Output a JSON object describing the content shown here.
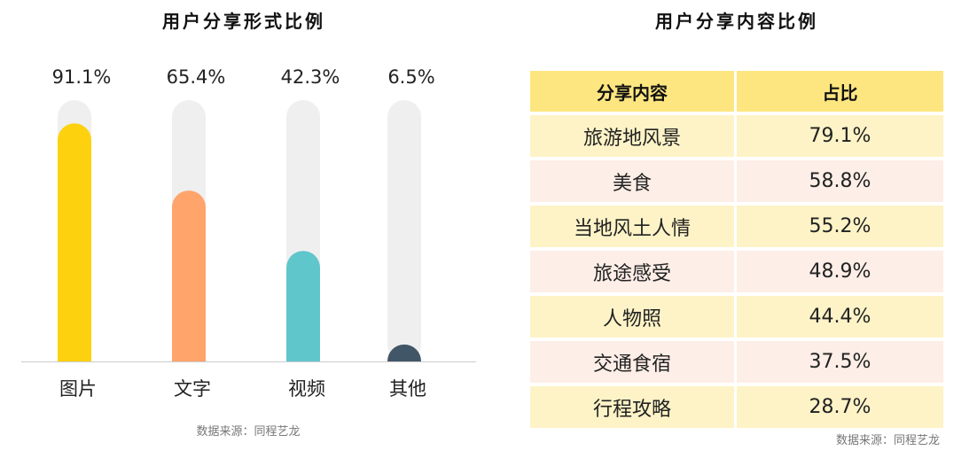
{
  "left_chart": {
    "title": "用户分享形式比例",
    "source": "数据来源：同程艺龙"
  },
  "right_table": {
    "title": "用户分享内容比例",
    "headers": [
      "分享内容",
      "占比"
    ],
    "rows": [
      [
        "旅游地风景",
        "79.1%"
      ],
      [
        "美食",
        "58.8%"
      ],
      [
        "当地风土人情",
        "55.2%"
      ],
      [
        "旅途感受",
        "48.9%"
      ],
      [
        "人物照",
        "44.4%"
      ],
      [
        "交通食宿",
        "37.5%"
      ],
      [
        "行程攻略",
        "28.7%"
      ]
    ],
    "source": "数据来源：同程艺龙"
  },
  "chart_data": [
    {
      "type": "bar",
      "title": "用户分享形式比例",
      "categories": [
        "图片",
        "文字",
        "视频",
        "其他"
      ],
      "values": [
        91.1,
        65.4,
        42.3,
        6.5
      ],
      "data_labels": [
        "91.1%",
        "65.4%",
        "42.3%",
        "6.5%"
      ],
      "unit": "%",
      "ylim": [
        0,
        100
      ],
      "colors": [
        "#fdd10e",
        "#ffa46b",
        "#5fc6cc",
        "#415667"
      ],
      "track_color": "#efefef",
      "grid": false,
      "legend": "none"
    },
    {
      "type": "table",
      "title": "用户分享内容比例",
      "columns": [
        "分享内容",
        "占比"
      ],
      "categories": [
        "旅游地风景",
        "美食",
        "当地风土人情",
        "旅途感受",
        "人物照",
        "交通食宿",
        "行程攻略"
      ],
      "values": [
        79.1,
        58.8,
        55.2,
        48.9,
        44.4,
        37.5,
        28.7
      ],
      "unit": "%"
    }
  ]
}
